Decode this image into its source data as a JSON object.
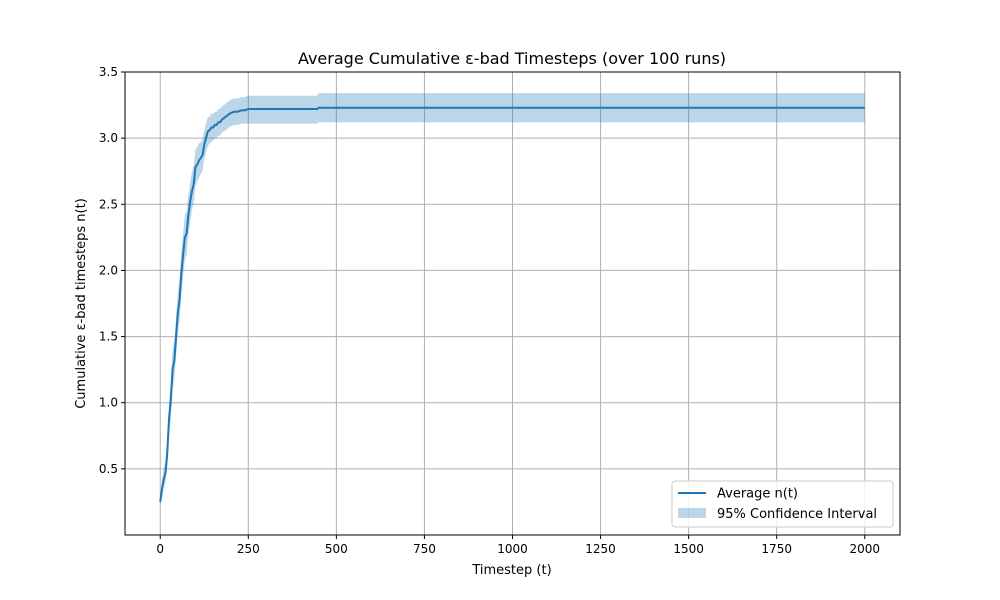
{
  "chart_data": {
    "type": "line",
    "title": "Average Cumulative ε-bad Timesteps (over 100 runs)",
    "xlabel": "Timestep (t)",
    "ylabel": "Cumulative ε-bad timesteps n(t)",
    "xlim": [
      -100,
      2100
    ],
    "ylim": [
      0,
      3.5
    ],
    "xticks": [
      0,
      250,
      500,
      750,
      1000,
      1250,
      1500,
      1750,
      2000
    ],
    "xtick_labels": [
      "0",
      "250",
      "500",
      "750",
      "1000",
      "1250",
      "1500",
      "1750",
      "2000"
    ],
    "yticks": [
      0.5,
      1.0,
      1.5,
      2.0,
      2.5,
      3.0,
      3.5
    ],
    "ytick_labels": [
      "0.5",
      "1.0",
      "1.5",
      "2.0",
      "2.5",
      "3.0",
      "3.5"
    ],
    "grid": true,
    "legend_position": "lower-right",
    "series": [
      {
        "name": "Average n(t)",
        "color": "#1f77b4",
        "x": [
          0,
          5,
          10,
          15,
          20,
          25,
          30,
          35,
          40,
          45,
          50,
          55,
          60,
          65,
          70,
          75,
          80,
          85,
          90,
          95,
          100,
          105,
          110,
          115,
          120,
          125,
          130,
          135,
          140,
          145,
          150,
          155,
          160,
          165,
          170,
          175,
          180,
          185,
          190,
          195,
          200,
          210,
          220,
          230,
          240,
          250,
          260,
          270,
          300,
          350,
          400,
          445,
          450,
          500,
          1000,
          1500,
          2000
        ],
        "y": [
          0.25,
          0.35,
          0.42,
          0.47,
          0.62,
          0.88,
          1.02,
          1.25,
          1.32,
          1.5,
          1.68,
          1.78,
          1.98,
          2.12,
          2.25,
          2.28,
          2.42,
          2.52,
          2.6,
          2.65,
          2.78,
          2.8,
          2.83,
          2.85,
          2.87,
          2.95,
          3.0,
          3.05,
          3.06,
          3.08,
          3.08,
          3.1,
          3.1,
          3.12,
          3.12,
          3.14,
          3.15,
          3.16,
          3.17,
          3.18,
          3.19,
          3.2,
          3.2,
          3.21,
          3.21,
          3.22,
          3.22,
          3.22,
          3.22,
          3.22,
          3.22,
          3.22,
          3.23,
          3.23,
          3.23,
          3.23,
          3.23
        ]
      }
    ],
    "confidence_band": {
      "name": "95% Confidence Interval",
      "color": "#1f77b4",
      "opacity": 0.3,
      "x": [
        0,
        5,
        10,
        15,
        20,
        25,
        30,
        35,
        40,
        45,
        50,
        55,
        60,
        65,
        70,
        75,
        80,
        85,
        90,
        95,
        100,
        105,
        110,
        115,
        120,
        125,
        130,
        135,
        140,
        145,
        150,
        155,
        160,
        165,
        170,
        175,
        180,
        185,
        190,
        195,
        200,
        210,
        220,
        230,
        240,
        250,
        260,
        270,
        300,
        350,
        400,
        445,
        450,
        500,
        1000,
        1500,
        2000
      ],
      "lower": [
        0.22,
        0.28,
        0.35,
        0.4,
        0.52,
        0.75,
        0.88,
        1.1,
        1.17,
        1.35,
        1.53,
        1.62,
        1.82,
        1.96,
        2.08,
        2.12,
        2.27,
        2.37,
        2.45,
        2.51,
        2.64,
        2.67,
        2.7,
        2.73,
        2.75,
        2.84,
        2.89,
        2.94,
        2.96,
        2.97,
        2.98,
        3.0,
        3.0,
        3.02,
        3.02,
        3.04,
        3.05,
        3.06,
        3.07,
        3.08,
        3.09,
        3.1,
        3.1,
        3.11,
        3.11,
        3.11,
        3.11,
        3.11,
        3.11,
        3.11,
        3.11,
        3.11,
        3.12,
        3.12,
        3.12,
        3.12,
        3.12
      ],
      "upper": [
        0.28,
        0.42,
        0.5,
        0.56,
        0.72,
        1.0,
        1.16,
        1.4,
        1.47,
        1.65,
        1.83,
        1.94,
        2.14,
        2.28,
        2.42,
        2.44,
        2.57,
        2.67,
        2.75,
        2.79,
        2.92,
        2.93,
        2.96,
        2.97,
        2.99,
        3.06,
        3.11,
        3.16,
        3.16,
        3.19,
        3.18,
        3.2,
        3.2,
        3.22,
        3.22,
        3.24,
        3.25,
        3.26,
        3.27,
        3.28,
        3.29,
        3.3,
        3.3,
        3.31,
        3.31,
        3.32,
        3.32,
        3.32,
        3.32,
        3.32,
        3.32,
        3.32,
        3.34,
        3.34,
        3.34,
        3.34,
        3.34
      ]
    }
  }
}
